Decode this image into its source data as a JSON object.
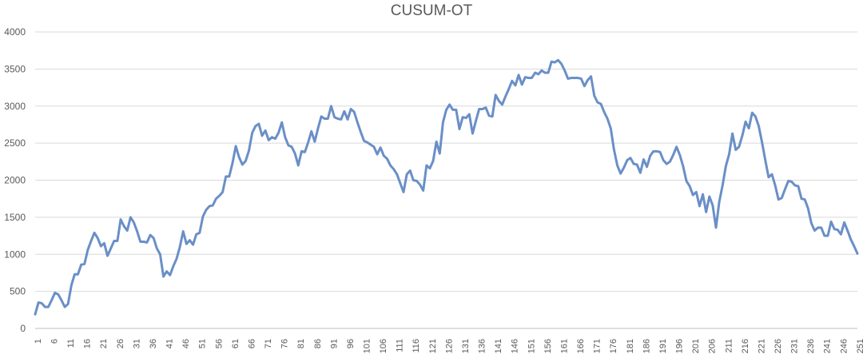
{
  "chart_data": {
    "type": "line",
    "title": "CUSUM-OT",
    "xlabel": "",
    "ylabel": "",
    "ylim": [
      0,
      4000
    ],
    "yticks": [
      0,
      500,
      1000,
      1500,
      2000,
      2500,
      3000,
      3500,
      4000
    ],
    "xticks": [
      1,
      6,
      11,
      16,
      21,
      26,
      31,
      36,
      41,
      46,
      51,
      56,
      61,
      66,
      71,
      76,
      81,
      86,
      91,
      96,
      101,
      106,
      111,
      116,
      121,
      126,
      131,
      136,
      141,
      146,
      151,
      156,
      161,
      166,
      171,
      176,
      181,
      186,
      191,
      196,
      201,
      206,
      211,
      216,
      221,
      226,
      231,
      236,
      241,
      246,
      251
    ],
    "grid": true,
    "legend": "none",
    "colors": {
      "line": "#6a8fc7",
      "grid": "#d9d9d9",
      "text": "#595959"
    },
    "x": [
      1,
      2,
      3,
      4,
      5,
      6,
      7,
      8,
      9,
      10,
      11,
      12,
      13,
      14,
      15,
      16,
      17,
      18,
      19,
      20,
      21,
      22,
      23,
      24,
      25,
      26,
      27,
      28,
      29,
      30,
      31,
      32,
      33,
      34,
      35,
      36,
      37,
      38,
      39,
      40,
      41,
      42,
      43,
      44,
      45,
      46,
      47,
      48,
      49,
      50,
      51,
      52,
      53,
      54,
      55,
      56,
      57,
      58,
      59,
      60,
      61,
      62,
      63,
      64,
      65,
      66,
      67,
      68,
      69,
      70,
      71,
      72,
      73,
      74,
      75,
      76,
      77,
      78,
      79,
      80,
      81,
      82,
      83,
      84,
      85,
      86,
      87,
      88,
      89,
      90,
      91,
      92,
      93,
      94,
      95,
      96,
      97,
      98,
      99,
      100,
      101,
      102,
      103,
      104,
      105,
      106,
      107,
      108,
      109,
      110,
      111,
      112,
      113,
      114,
      115,
      116,
      117,
      118,
      119,
      120,
      121,
      122,
      123,
      124,
      125,
      126,
      127,
      128,
      129,
      130,
      131,
      132,
      133,
      134,
      135,
      136,
      137,
      138,
      139,
      140,
      141,
      142,
      143,
      144,
      145,
      146,
      147,
      148,
      149,
      150,
      151,
      152,
      153,
      154,
      155,
      156,
      157,
      158,
      159,
      160,
      161,
      162,
      163,
      164,
      165,
      166,
      167,
      168,
      169,
      170,
      171,
      172,
      173,
      174,
      175,
      176,
      177,
      178,
      179,
      180,
      181,
      182,
      183,
      184,
      185,
      186,
      187,
      188,
      189,
      190,
      191,
      192,
      193,
      194,
      195,
      196,
      197,
      198,
      199,
      200,
      201,
      202,
      203,
      204,
      205,
      206,
      207,
      208,
      209,
      210,
      211,
      212,
      213,
      214,
      215,
      216,
      217,
      218,
      219,
      220,
      221,
      222,
      223,
      224,
      225,
      226,
      227,
      228,
      229,
      230,
      231,
      232,
      233,
      234,
      235,
      236,
      237,
      238,
      239,
      240,
      241,
      242,
      243,
      244,
      245,
      246,
      247,
      248,
      249,
      250,
      251
    ],
    "series": [
      {
        "values": [
          190,
          350,
          340,
          290,
          290,
          380,
          480,
          460,
          380,
          290,
          330,
          580,
          730,
          730,
          860,
          870,
          1060,
          1180,
          1290,
          1220,
          1110,
          1150,
          980,
          1080,
          1180,
          1180,
          1470,
          1380,
          1320,
          1500,
          1430,
          1310,
          1170,
          1170,
          1160,
          1260,
          1220,
          1080,
          1000,
          700,
          770,
          720,
          840,
          940,
          1100,
          1310,
          1140,
          1190,
          1130,
          1270,
          1290,
          1510,
          1600,
          1650,
          1660,
          1750,
          1790,
          1840,
          2050,
          2050,
          2230,
          2460,
          2310,
          2210,
          2260,
          2400,
          2640,
          2730,
          2760,
          2600,
          2670,
          2540,
          2580,
          2560,
          2640,
          2780,
          2580,
          2470,
          2450,
          2360,
          2200,
          2390,
          2380,
          2510,
          2660,
          2520,
          2700,
          2860,
          2830,
          2830,
          3000,
          2850,
          2830,
          2820,
          2930,
          2820,
          2960,
          2920,
          2780,
          2650,
          2530,
          2510,
          2480,
          2450,
          2350,
          2440,
          2330,
          2290,
          2200,
          2150,
          2080,
          1960,
          1840,
          2080,
          2130,
          2000,
          1990,
          1940,
          1860,
          2200,
          2160,
          2260,
          2520,
          2360,
          2780,
          2950,
          3020,
          2950,
          2950,
          2690,
          2850,
          2840,
          2890,
          2630,
          2800,
          2960,
          2960,
          2980,
          2870,
          2860,
          3150,
          3070,
          3020,
          3130,
          3230,
          3340,
          3280,
          3420,
          3290,
          3390,
          3380,
          3380,
          3450,
          3430,
          3480,
          3450,
          3450,
          3600,
          3590,
          3620,
          3570,
          3480,
          3370,
          3380,
          3380,
          3380,
          3370,
          3270,
          3350,
          3400,
          3140,
          3050,
          3030,
          2920,
          2830,
          2700,
          2410,
          2200,
          2090,
          2170,
          2270,
          2300,
          2220,
          2210,
          2100,
          2280,
          2180,
          2330,
          2390,
          2390,
          2380,
          2270,
          2220,
          2250,
          2340,
          2450,
          2340,
          2190,
          1990,
          1920,
          1800,
          1840,
          1650,
          1810,
          1570,
          1780,
          1660,
          1360,
          1710,
          1930,
          2190,
          2350,
          2630,
          2410,
          2450,
          2600,
          2790,
          2700,
          2910,
          2860,
          2730,
          2510,
          2270,
          2040,
          2080,
          1930,
          1740,
          1760,
          1880,
          1990,
          1980,
          1930,
          1920,
          1750,
          1740,
          1620,
          1420,
          1320,
          1360,
          1360,
          1250,
          1250,
          1440,
          1340,
          1330,
          1270,
          1430,
          1320,
          1200,
          1110,
          1010
        ]
      }
    ]
  }
}
